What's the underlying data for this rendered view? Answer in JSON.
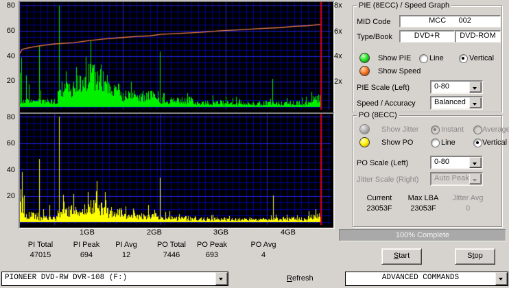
{
  "axes": {
    "left_top": [
      "80",
      "60",
      "40",
      "20"
    ],
    "left_bottom": [
      "80",
      "60",
      "40",
      "20"
    ],
    "right_top": [
      "8x",
      "6x",
      "4x",
      "2x"
    ],
    "x_labels": [
      "1GB",
      "2GB",
      "3GB",
      "4GB"
    ]
  },
  "chart_data": [
    {
      "id": "pie",
      "type": "bar",
      "title": "PIE (8ECC) / Speed Graph",
      "bar_color": "#00f000",
      "bg": "#000000",
      "grid_minor_color": "#000098",
      "grid_major_color": "#2222e8",
      "ylim": [
        0,
        80
      ],
      "x_ticks_gb": [
        1,
        2,
        3,
        4
      ],
      "x_range_gb": [
        0,
        4.63
      ],
      "position_line_gb": 4.49,
      "position_line_color": "#dd0000",
      "segments": [
        {
          "from": 0.0,
          "to": 0.05,
          "base": 2,
          "var": 6
        },
        {
          "from": 0.05,
          "to": 0.28,
          "base": 2,
          "var": 5
        },
        {
          "from": 0.28,
          "to": 0.56,
          "base": 2,
          "var": 5
        },
        {
          "from": 0.56,
          "to": 0.62,
          "base": 4,
          "var": 10
        },
        {
          "from": 0.62,
          "to": 0.78,
          "base": 7,
          "var": 14
        },
        {
          "from": 0.78,
          "to": 1.02,
          "base": 10,
          "var": 16
        },
        {
          "from": 1.02,
          "to": 1.27,
          "base": 12,
          "var": 24
        },
        {
          "from": 1.27,
          "to": 1.5,
          "base": 7,
          "var": 14
        },
        {
          "from": 1.5,
          "to": 2.07,
          "base": 4,
          "var": 9
        },
        {
          "from": 2.07,
          "to": 2.6,
          "base": 2,
          "var": 6
        },
        {
          "from": 2.6,
          "to": 3.75,
          "base": 1,
          "var": 4
        },
        {
          "from": 3.75,
          "to": 4.35,
          "base": 1,
          "var": 4
        },
        {
          "from": 4.35,
          "to": 4.49,
          "base": 3,
          "var": 7
        }
      ],
      "spikes": [
        {
          "gb": 0.005,
          "value": 27
        },
        {
          "gb": 0.02,
          "value": 39
        },
        {
          "gb": 0.09,
          "value": 25
        },
        {
          "gb": 0.13,
          "value": 18
        },
        {
          "gb": 0.29,
          "value": 49
        },
        {
          "gb": 0.585,
          "value": 80
        },
        {
          "gb": 2.09,
          "value": 44
        },
        {
          "gb": 3.77,
          "value": 22
        },
        {
          "gb": 4.36,
          "value": 12
        }
      ],
      "speed_series": {
        "name": "Speed",
        "color": "#f08048",
        "units": "x",
        "points_gb_x": [
          [
            0,
            4.2
          ],
          [
            0.03,
            4.5
          ],
          [
            0.05,
            4.55
          ],
          [
            0.1,
            4.62
          ],
          [
            0.2,
            4.72
          ],
          [
            0.35,
            4.85
          ],
          [
            0.5,
            4.95
          ],
          [
            0.62,
            5.0
          ],
          [
            0.8,
            5.05
          ],
          [
            1.0,
            5.2
          ],
          [
            1.25,
            5.35
          ],
          [
            1.5,
            5.45
          ],
          [
            1.75,
            5.55
          ],
          [
            1.95,
            5.6
          ],
          [
            2.1,
            5.72
          ],
          [
            2.4,
            5.8
          ],
          [
            2.7,
            5.88
          ],
          [
            3.0,
            6.0
          ],
          [
            3.3,
            6.08
          ],
          [
            3.6,
            6.18
          ],
          [
            3.9,
            6.25
          ],
          [
            4.1,
            6.35
          ],
          [
            4.3,
            6.4
          ],
          [
            4.49,
            6.5
          ]
        ]
      }
    },
    {
      "id": "po",
      "type": "bar",
      "title": "PO (8ECC)",
      "bar_color": "#ffff00",
      "bg": "#000000",
      "grid_minor_color": "#000098",
      "grid_major_color": "#2222e8",
      "ylim": [
        0,
        80
      ],
      "x_ticks_gb": [
        1,
        2,
        3,
        4
      ],
      "x_range_gb": [
        0,
        4.63
      ],
      "position_line_gb": 4.49,
      "position_line_color": "#dd0000",
      "segments": [
        {
          "from": 0.0,
          "to": 0.05,
          "base": 6,
          "var": 14
        },
        {
          "from": 0.05,
          "to": 0.27,
          "base": 2,
          "var": 6
        },
        {
          "from": 0.27,
          "to": 0.56,
          "base": 1,
          "var": 4
        },
        {
          "from": 0.56,
          "to": 0.62,
          "base": 3,
          "var": 7
        },
        {
          "from": 0.62,
          "to": 0.95,
          "base": 4,
          "var": 9
        },
        {
          "from": 0.95,
          "to": 1.3,
          "base": 5,
          "var": 12
        },
        {
          "from": 1.3,
          "to": 1.52,
          "base": 3,
          "var": 9
        },
        {
          "from": 1.52,
          "to": 2.07,
          "base": 2,
          "var": 5
        },
        {
          "from": 2.07,
          "to": 2.6,
          "base": 1,
          "var": 4
        },
        {
          "from": 2.6,
          "to": 3.1,
          "base": 1,
          "var": 3
        },
        {
          "from": 3.1,
          "to": 3.75,
          "base": 1,
          "var": 2
        },
        {
          "from": 3.75,
          "to": 4.3,
          "base": 1,
          "var": 3
        },
        {
          "from": 4.3,
          "to": 4.49,
          "base": 2,
          "var": 5
        }
      ],
      "spikes": [
        {
          "gb": 0.01,
          "value": 25
        },
        {
          "gb": 0.035,
          "value": 38
        },
        {
          "gb": 0.06,
          "value": 20
        },
        {
          "gb": 0.29,
          "value": 48
        },
        {
          "gb": 0.44,
          "value": 13
        },
        {
          "gb": 0.585,
          "value": 80
        },
        {
          "gb": 2.09,
          "value": 34
        },
        {
          "gb": 3.78,
          "value": 20
        },
        {
          "gb": 4.42,
          "value": 10
        }
      ]
    }
  ],
  "pie_panel": {
    "title": "PIE (8ECC) / Speed Graph",
    "mid_code_label": "MID Code",
    "mid_code_value": "MCC      002",
    "type_book_label": "Type/Book",
    "type_value": "DVD+R",
    "book_value": "DVD-ROM",
    "show_pie": "Show PIE",
    "show_speed": "Show Speed",
    "line": "Line",
    "vertical": "Vertical",
    "pie_scale_label": "PIE Scale (Left)",
    "pie_scale_value": "0-80",
    "speed_accuracy_label": "Speed / Accuracy",
    "speed_accuracy_value": "Balanced"
  },
  "po_panel": {
    "title": "PO (8ECC)",
    "show_jitter": "Show Jitter",
    "instant": "Instant",
    "average": "Average",
    "show_po": "Show PO",
    "line": "Line",
    "vertical": "Vertical",
    "po_scale_label": "PO Scale (Left)",
    "po_scale_value": "0-80",
    "jitter_scale_label": "Jitter Scale (Right)",
    "jitter_scale_value": "Auto Peak",
    "current_label": "Current",
    "current_value": "23053F",
    "max_lba_label": "Max LBA",
    "max_lba_value": "23053F",
    "jitter_avg_label": "Jitter Avg",
    "jitter_avg_value": "0"
  },
  "progress": {
    "text": "100% Complete"
  },
  "buttons": {
    "start": {
      "label": "Start",
      "underline": 0
    },
    "stop": {
      "label": "Stop",
      "underline": 1
    }
  },
  "stats": {
    "items": [
      {
        "label": "PI Total",
        "value": "47015"
      },
      {
        "label": "PI Peak",
        "value": "694"
      },
      {
        "label": "PI Avg",
        "value": "12"
      },
      {
        "label": "PO Total",
        "value": "7446"
      },
      {
        "label": "PO Peak",
        "value": "693"
      },
      {
        "label": "PO Avg",
        "value": "4"
      }
    ]
  },
  "bottom": {
    "drive": "PIONEER DVD-RW  DVR-108  (F:)",
    "refresh": {
      "label": "Refresh",
      "underline": 0
    },
    "advanced": "ADVANCED COMMANDS"
  },
  "colors": {
    "window_bg": "#d6d3ce",
    "pie_bars": "#00f000",
    "po_bars": "#ffff00",
    "speed_line": "#f08048",
    "position_line": "#dd0000",
    "grid_major": "#2222e8",
    "grid_minor": "#000098"
  }
}
